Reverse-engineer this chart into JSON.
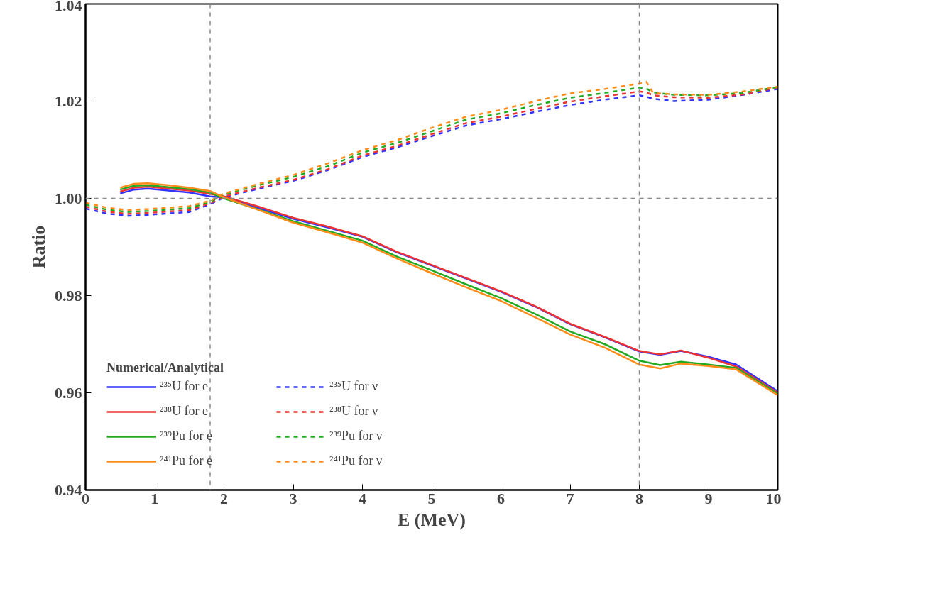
{
  "chart_data": {
    "type": "line",
    "xlabel": "E (MeV)",
    "ylabel": "Ratio",
    "legend_title": "Numerical/Analytical",
    "xlim": [
      0,
      10
    ],
    "ylim": [
      0.94,
      1.04
    ],
    "xticks": [
      0,
      1,
      2,
      3,
      4,
      5,
      6,
      7,
      8,
      9,
      10
    ],
    "yticks": [
      0.94,
      0.96,
      0.98,
      {
        "value": 1.0,
        "label": "1.00"
      },
      1.02,
      1.04
    ],
    "grid": false,
    "legend": "bottom left",
    "marker": "none",
    "ref_lines": [
      {
        "axis": "x",
        "value": 1.8,
        "label": null,
        "color": "#888888",
        "line_style": "dashed"
      },
      {
        "axis": "x",
        "value": 8,
        "label": null,
        "color": "#888888",
        "line_style": "dashed"
      },
      {
        "axis": "y",
        "value": 1.0,
        "label": null,
        "color": "#888888",
        "line_style": "dashed"
      }
    ],
    "series": [
      {
        "name": "²³⁵U for e",
        "color": "#3333ff",
        "line_style": "solid",
        "x": [
          0.5,
          0.7,
          0.9,
          1.2,
          1.5,
          1.8,
          2,
          2.5,
          3,
          3.5,
          4,
          4.5,
          5,
          5.5,
          6,
          6.5,
          7,
          7.5,
          8,
          8.3,
          8.6,
          9,
          9.4,
          10
        ],
        "values": [
          1.001,
          1.0018,
          1.002,
          1.0016,
          1.0012,
          1.0004,
          1.0002,
          0.998,
          0.9958,
          0.994,
          0.9921,
          0.9889,
          0.9862,
          0.9835,
          0.9808,
          0.9777,
          0.9741,
          0.9714,
          0.9685,
          0.9678,
          0.9686,
          0.9674,
          0.9658,
          0.9603
        ]
      },
      {
        "name": "²³⁵U for ν",
        "color": "#3333ff",
        "line_style": "dashed",
        "x": [
          0,
          0.3,
          0.6,
          0.9,
          1.2,
          1.5,
          1.8,
          2,
          2.5,
          3,
          3.5,
          4,
          4.5,
          5,
          5.5,
          6,
          6.5,
          7,
          7.5,
          8,
          8.1,
          8.2,
          8.5,
          9,
          9.5,
          10
        ],
        "values": [
          0.9979,
          0.9969,
          0.9964,
          0.9966,
          0.9969,
          0.9972,
          0.9988,
          1.0002,
          1.002,
          1.0036,
          1.0058,
          1.0085,
          1.0105,
          1.0128,
          1.015,
          1.0163,
          1.0178,
          1.0192,
          1.0203,
          1.0212,
          1.0209,
          1.0205,
          1.02,
          1.0203,
          1.0213,
          1.0225
        ]
      },
      {
        "name": "²³⁸U for e",
        "color": "#ee3333",
        "line_style": "solid",
        "x": [
          0.5,
          0.7,
          0.9,
          1.2,
          1.5,
          1.8,
          2,
          2.5,
          3,
          3.5,
          4,
          4.5,
          5,
          5.5,
          6,
          6.5,
          7,
          7.5,
          8,
          8.3,
          8.6,
          9,
          9.4,
          10
        ],
        "values": [
          1.0014,
          1.0022,
          1.0024,
          1.002,
          1.0016,
          1.0009,
          1.0004,
          0.9983,
          0.996,
          0.9942,
          0.9922,
          0.989,
          0.9863,
          0.9836,
          0.9809,
          0.9778,
          0.9742,
          0.9715,
          0.9686,
          0.9679,
          0.9687,
          0.9672,
          0.9654,
          0.96
        ]
      },
      {
        "name": "²³⁸U for ν",
        "color": "#ee3333",
        "line_style": "dashed",
        "x": [
          0,
          0.3,
          0.6,
          0.9,
          1.2,
          1.5,
          1.8,
          2,
          2.5,
          3,
          3.5,
          4,
          4.5,
          5,
          5.5,
          6,
          6.5,
          7,
          7.5,
          8,
          8.1,
          8.2,
          8.5,
          9,
          9.5,
          10
        ],
        "values": [
          0.9983,
          0.9973,
          0.9968,
          0.997,
          0.9973,
          0.9976,
          0.999,
          1.0004,
          1.0022,
          1.0038,
          1.006,
          1.0088,
          1.0108,
          1.0132,
          1.0155,
          1.0168,
          1.0184,
          1.0199,
          1.021,
          1.022,
          1.0218,
          1.0212,
          1.0208,
          1.0207,
          1.0214,
          1.0228
        ]
      },
      {
        "name": "²³⁹Pu for e",
        "color": "#22aa22",
        "line_style": "solid",
        "x": [
          0.5,
          0.7,
          0.9,
          1.2,
          1.5,
          1.8,
          2,
          2.5,
          3,
          3.5,
          4,
          4.5,
          5,
          5.5,
          6,
          6.5,
          7,
          7.5,
          8,
          8.3,
          8.6,
          9,
          9.4,
          10
        ],
        "values": [
          1.0018,
          1.0026,
          1.0027,
          1.0023,
          1.0019,
          1.0012,
          1.0,
          0.9977,
          0.9953,
          0.9933,
          0.9913,
          0.988,
          0.9852,
          0.9823,
          0.9795,
          0.9762,
          0.9726,
          0.97,
          0.9666,
          0.9657,
          0.9664,
          0.9658,
          0.9651,
          0.9598
        ]
      },
      {
        "name": "²³⁹Pu for ν",
        "color": "#22aa22",
        "line_style": "dashed",
        "x": [
          0,
          0.3,
          0.6,
          0.9,
          1.2,
          1.5,
          1.8,
          2,
          2.5,
          3,
          3.5,
          4,
          4.5,
          5,
          5.5,
          6,
          6.5,
          7,
          7.5,
          8,
          8.1,
          8.2,
          8.5,
          9,
          9.5,
          10
        ],
        "values": [
          0.9987,
          0.9977,
          0.9972,
          0.9974,
          0.9977,
          0.998,
          0.9993,
          1.0008,
          1.0027,
          1.0044,
          1.0066,
          1.0094,
          1.0114,
          1.0138,
          1.0162,
          1.0175,
          1.0192,
          1.0207,
          1.0217,
          1.0228,
          1.0226,
          1.0218,
          1.0213,
          1.0212,
          1.0217,
          1.0229
        ]
      },
      {
        "name": "²⁴¹Pu for e",
        "color": "#ff8c1a",
        "line_style": "solid",
        "x": [
          0.5,
          0.7,
          0.9,
          1.2,
          1.5,
          1.8,
          2,
          2.5,
          3,
          3.5,
          4,
          4.5,
          5,
          5.5,
          6,
          6.5,
          7,
          7.5,
          8,
          8.3,
          8.6,
          9,
          9.4,
          10
        ],
        "values": [
          1.0022,
          1.003,
          1.0031,
          1.0027,
          1.0022,
          1.0015,
          1.0002,
          0.9976,
          0.995,
          0.993,
          0.9909,
          0.9876,
          0.9846,
          0.9817,
          0.9789,
          0.9755,
          0.972,
          0.9693,
          0.9658,
          0.965,
          0.966,
          0.9655,
          0.9648,
          0.9595
        ]
      },
      {
        "name": "²⁴¹Pu for ν",
        "color": "#ff8c1a",
        "line_style": "dashed",
        "x": [
          0,
          0.3,
          0.6,
          0.9,
          1.2,
          1.5,
          1.8,
          2,
          2.5,
          3,
          3.5,
          4,
          4.5,
          5,
          5.5,
          6,
          6.5,
          7,
          7.5,
          8,
          8.1,
          8.2,
          8.5,
          9,
          9.5,
          10
        ],
        "values": [
          0.9991,
          0.9981,
          0.9976,
          0.9978,
          0.9981,
          0.9984,
          0.9995,
          1.001,
          1.003,
          1.0048,
          1.0072,
          1.0099,
          1.012,
          1.0145,
          1.0168,
          1.0182,
          1.02,
          1.0216,
          1.0225,
          1.0236,
          1.024,
          1.0217,
          1.0214,
          1.0213,
          1.022,
          1.023
        ]
      }
    ]
  }
}
